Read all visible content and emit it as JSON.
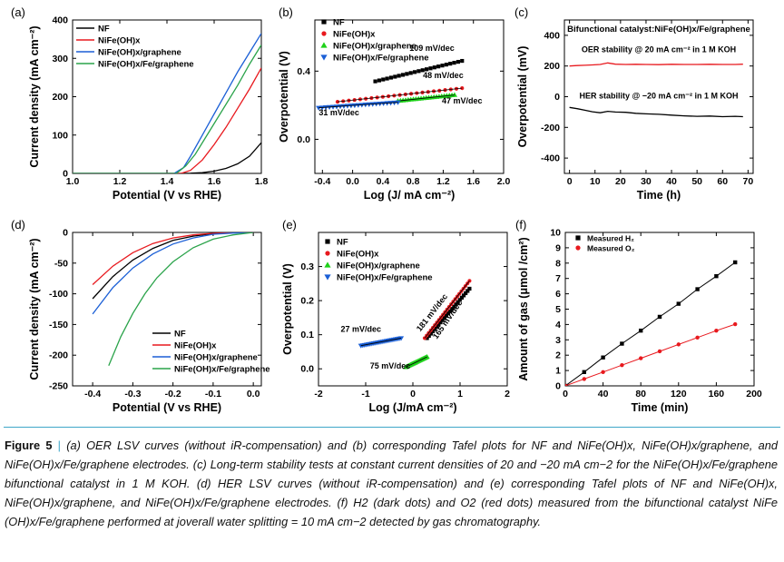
{
  "figure": {
    "caption_lead": "Figure 5",
    "caption_sep": " | ",
    "caption_body": "(a) OER LSV curves (without iR-compensation) and (b) corresponding Tafel plots for NF and NiFe(OH)x, NiFe(OH)x/graphene, and NiFe(OH)x/Fe/graphene electrodes. (c) Long-term stability tests at constant current densities of 20 and −20 mA cm−2 for the NiFe(OH)x/Fe/graphene bifunctional catalyst in 1 M KOH. (d) HER LSV curves (without iR-compensation) and (e) corresponding Tafel plots of NF and NiFe(OH)x, NiFe(OH)x/graphene, and NiFe(OH)x/Fe/graphene electrodes. (f) H2 (dark dots) and O2 (red dots) measured from the bifunctional catalyst NiFe (OH)x/Fe/graphene performed at joverall water splitting = 10 mA cm−2 detected by gas chromatography."
  },
  "colors": {
    "NF": "#000000",
    "NiFe": "#e8191e",
    "graphene": "#1b5fd6",
    "fegraphene": "#2aa34a",
    "tafel_green": "#1fd11a",
    "accent": "#3fa7c9"
  },
  "chart_data": [
    {
      "id": "a",
      "panel_label": "(a)",
      "type": "line",
      "xlabel": "Potential  (V vs RHE)",
      "ylabel": "Current density (mA cm⁻²)",
      "xlim": [
        1.0,
        1.8
      ],
      "ylim": [
        0,
        400
      ],
      "xticks": [
        1.0,
        1.2,
        1.4,
        1.6,
        1.8
      ],
      "yticks": [
        0,
        100,
        200,
        300,
        400
      ],
      "legend": "top-left",
      "series": [
        {
          "name": "NF",
          "color": "#000000",
          "x": [
            1.0,
            1.45,
            1.5,
            1.55,
            1.6,
            1.65,
            1.7,
            1.75,
            1.8
          ],
          "y": [
            0,
            0,
            0.5,
            2,
            6,
            13,
            25,
            45,
            80
          ]
        },
        {
          "name": "NiFe(OH)x",
          "color": "#e8191e",
          "x": [
            1.0,
            1.46,
            1.5,
            1.55,
            1.6,
            1.65,
            1.7,
            1.75,
            1.8
          ],
          "y": [
            0,
            0,
            8,
            35,
            75,
            120,
            170,
            220,
            275
          ]
        },
        {
          "name": "NiFe(OH)x/graphene",
          "color": "#1b5fd6",
          "x": [
            1.0,
            1.43,
            1.47,
            1.5,
            1.55,
            1.6,
            1.65,
            1.7,
            1.75,
            1.8
          ],
          "y": [
            0,
            0,
            15,
            45,
            100,
            155,
            210,
            265,
            315,
            365
          ]
        },
        {
          "name": "NiFe(OH)x/Fe/graphene",
          "color": "#2aa34a",
          "x": [
            1.0,
            1.44,
            1.48,
            1.52,
            1.56,
            1.6,
            1.65,
            1.7,
            1.75,
            1.8
          ],
          "y": [
            0,
            0,
            20,
            50,
            90,
            130,
            180,
            230,
            285,
            335
          ]
        }
      ]
    },
    {
      "id": "b",
      "panel_label": "(b)",
      "type": "scatter",
      "xlabel": "Log (J/ mA cm⁻²)",
      "ylabel": "Overpotential (V)",
      "xlim": [
        -0.5,
        2.0
      ],
      "ylim": [
        -0.2,
        0.7
      ],
      "xticks": [
        -0.4,
        0.0,
        0.4,
        0.8,
        1.2,
        1.6,
        2.0
      ],
      "yticks": [
        0.0,
        0.4
      ],
      "legend": "top-left",
      "series": [
        {
          "name": "NF",
          "color": "#000000",
          "marker": "square",
          "x": [
            0.3,
            1.45
          ],
          "y": [
            0.34,
            0.46
          ]
        },
        {
          "name": "NiFe(OH)x",
          "color": "#e8191e",
          "marker": "circle",
          "x": [
            -0.2,
            1.45
          ],
          "y": [
            0.22,
            0.3
          ]
        },
        {
          "name": "NiFe(OH)x/graphene",
          "color": "#1fd11a",
          "marker": "triangle-up",
          "x": [
            0.6,
            1.35
          ],
          "y": [
            0.225,
            0.26
          ]
        },
        {
          "name": "NiFe(OH)x/Fe/graphene",
          "color": "#1b5fd6",
          "marker": "triangle-down",
          "x": [
            -0.45,
            0.6
          ],
          "y": [
            0.185,
            0.217
          ]
        }
      ],
      "annotations": [
        {
          "text": "109 mV/dec",
          "x": 1.05,
          "y": 0.52
        },
        {
          "text": "48 mV/dec",
          "x": 1.2,
          "y": 0.36
        },
        {
          "text": "47 mV/dec",
          "x": 1.45,
          "y": 0.21
        },
        {
          "text": "31 mV/dec",
          "x": -0.18,
          "y": 0.14
        }
      ]
    },
    {
      "id": "c",
      "panel_label": "(c)",
      "type": "line",
      "xlabel": "Time (h)",
      "ylabel": "Overpotential  (mV)",
      "xlim": [
        -2,
        72
      ],
      "ylim": [
        -500,
        500
      ],
      "xticks": [
        0,
        10,
        20,
        30,
        40,
        50,
        60,
        70
      ],
      "yticks": [
        -400,
        -200,
        0,
        200,
        400
      ],
      "title": "Bifunctional catalyst:NiFe(OH)x/Fe/graphene",
      "series": [
        {
          "name": "OER",
          "color": "#e8191e",
          "x": [
            0,
            3,
            6,
            9,
            12,
            15,
            18,
            22,
            26,
            30,
            35,
            40,
            45,
            50,
            55,
            60,
            65,
            68
          ],
          "y": [
            200,
            203,
            205,
            207,
            210,
            220,
            212,
            210,
            211,
            210,
            209,
            211,
            210,
            210,
            211,
            210,
            210,
            212
          ]
        },
        {
          "name": "HER",
          "color": "#000000",
          "x": [
            0,
            3,
            6,
            9,
            12,
            15,
            18,
            22,
            26,
            30,
            35,
            40,
            45,
            50,
            55,
            60,
            65,
            68
          ],
          "y": [
            -70,
            -78,
            -88,
            -98,
            -105,
            -95,
            -100,
            -102,
            -108,
            -112,
            -115,
            -120,
            -125,
            -128,
            -126,
            -130,
            -128,
            -130
          ]
        }
      ],
      "annotations": [
        {
          "text": "OER stability @ 20 mA cm⁻² in 1 M KOH",
          "x": 35,
          "y": 290
        },
        {
          "text": "HER stability @ −20 mA cm⁻² in 1 M KOH",
          "x": 35,
          "y": -12
        }
      ]
    },
    {
      "id": "d",
      "panel_label": "(d)",
      "type": "line",
      "xlabel": "Potential  (V vs RHE)",
      "ylabel": "Current density (mA cm⁻²)",
      "xlim": [
        -0.45,
        0.02
      ],
      "ylim": [
        -250,
        0
      ],
      "xticks": [
        -0.4,
        -0.3,
        -0.2,
        -0.1,
        0.0
      ],
      "yticks": [
        -250,
        -200,
        -150,
        -100,
        -50,
        0
      ],
      "legend": "bottom-right",
      "series": [
        {
          "name": "NF",
          "color": "#000000",
          "x": [
            -0.4,
            -0.35,
            -0.3,
            -0.25,
            -0.2,
            -0.15,
            -0.1,
            -0.05,
            0.0
          ],
          "y": [
            -108,
            -72,
            -45,
            -26,
            -13,
            -6,
            -2,
            -0.5,
            0
          ]
        },
        {
          "name": "NiFe(OH)x",
          "color": "#e8191e",
          "x": [
            -0.4,
            -0.35,
            -0.3,
            -0.25,
            -0.2,
            -0.15,
            -0.1,
            -0.05,
            0.0
          ],
          "y": [
            -85,
            -55,
            -33,
            -18,
            -9,
            -4,
            -1.5,
            -0.5,
            0
          ]
        },
        {
          "name": "NiFe(OH)x/graphene",
          "color": "#1b5fd6",
          "x": [
            -0.4,
            -0.35,
            -0.3,
            -0.25,
            -0.2,
            -0.15,
            -0.1,
            -0.05,
            0.0
          ],
          "y": [
            -133,
            -90,
            -58,
            -35,
            -19,
            -9,
            -3,
            -1,
            0
          ]
        },
        {
          "name": "NiFe(OH)x/Fe/graphene",
          "color": "#2aa34a",
          "x": [
            -0.36,
            -0.33,
            -0.3,
            -0.27,
            -0.24,
            -0.2,
            -0.15,
            -0.1,
            -0.05,
            0.0
          ],
          "y": [
            -217,
            -170,
            -132,
            -100,
            -74,
            -48,
            -25,
            -11,
            -4,
            0
          ]
        }
      ]
    },
    {
      "id": "e",
      "panel_label": "(e)",
      "type": "scatter",
      "xlabel": "Log (J/mA cm⁻²)",
      "ylabel": "Overpotential (V)",
      "xlim": [
        -2,
        2
      ],
      "ylim": [
        -0.05,
        0.4
      ],
      "xticks": [
        -2,
        -1,
        0,
        1,
        2
      ],
      "yticks": [
        0.0,
        0.1,
        0.2,
        0.3
      ],
      "legend": "top-left",
      "series": [
        {
          "name": "NF",
          "color": "#000000",
          "marker": "square",
          "x": [
            0.3,
            1.2
          ],
          "y": [
            0.09,
            0.235
          ]
        },
        {
          "name": "NiFe(OH)x",
          "color": "#e8191e",
          "marker": "circle",
          "x": [
            0.25,
            1.2
          ],
          "y": [
            0.09,
            0.258
          ]
        },
        {
          "name": "NiFe(OH)x/graphene",
          "color": "#1fd11a",
          "marker": "triangle-up",
          "x": [
            -0.15,
            0.3
          ],
          "y": [
            0.005,
            0.035
          ]
        },
        {
          "name": "NiFe(OH)x/Fe/graphene",
          "color": "#1b5fd6",
          "marker": "triangle-down",
          "x": [
            -1.1,
            -0.25
          ],
          "y": [
            0.068,
            0.09
          ]
        }
      ],
      "annotations": [
        {
          "text": "27 mV/dec",
          "x": -1.1,
          "y": 0.108
        },
        {
          "text": "181 mV/dec",
          "x": 0.45,
          "y": 0.16,
          "rotate": -52
        },
        {
          "text": "165 mV/dec",
          "x": 0.78,
          "y": 0.14,
          "rotate": -55
        },
        {
          "text": "75 mV/dec",
          "x": -0.48,
          "y": 0.0
        }
      ]
    },
    {
      "id": "f",
      "panel_label": "(f)",
      "type": "line",
      "xlabel": "Time (min)",
      "ylabel": "Amount of gas (μmol /cm²)",
      "xlim": [
        0,
        200
      ],
      "ylim": [
        0,
        10
      ],
      "xticks": [
        0,
        40,
        80,
        120,
        160,
        200
      ],
      "yticks": [
        0,
        1,
        2,
        3,
        4,
        5,
        6,
        7,
        8,
        9,
        10
      ],
      "legend": "top-left",
      "series": [
        {
          "name": "Measured H₂",
          "color": "#000000",
          "marker": "square",
          "x": [
            0,
            20,
            40,
            60,
            80,
            100,
            120,
            140,
            160,
            180
          ],
          "y": [
            0,
            0.9,
            1.85,
            2.75,
            3.6,
            4.5,
            5.35,
            6.3,
            7.15,
            8.05
          ]
        },
        {
          "name": "Measured O₂",
          "color": "#e8191e",
          "marker": "circle",
          "x": [
            0,
            20,
            40,
            60,
            80,
            100,
            120,
            140,
            160,
            180
          ],
          "y": [
            0,
            0.45,
            0.9,
            1.35,
            1.8,
            2.25,
            2.7,
            3.15,
            3.6,
            4.02
          ]
        }
      ]
    }
  ]
}
